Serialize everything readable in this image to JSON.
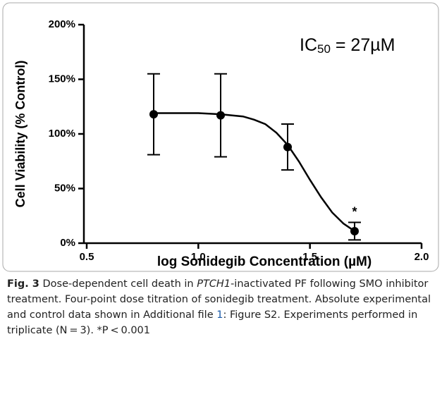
{
  "chart_data": {
    "type": "scatter",
    "xlabel": "log Sonidegib Concentration (µM)",
    "ylabel": "Cell Viability (% Control)",
    "x": [
      0.8,
      1.1,
      1.4,
      1.7
    ],
    "values": [
      118,
      117,
      88,
      11
    ],
    "errors": [
      37,
      38,
      21,
      8
    ],
    "color": "#000000",
    "curve": {
      "x": [
        0.8,
        0.9,
        1.0,
        1.1,
        1.2,
        1.25,
        1.3,
        1.35,
        1.4,
        1.45,
        1.5,
        1.55,
        1.6,
        1.65,
        1.7
      ],
      "values": [
        119,
        119,
        119,
        118,
        116,
        113,
        109,
        101,
        90,
        75,
        58,
        42,
        28,
        18,
        11
      ]
    },
    "point_annotation": "*",
    "annotation": {
      "main": "IC",
      "sub": "50",
      "rest": " = 27µM"
    },
    "xlim": [
      0.5,
      2.0
    ],
    "xticks": [
      0.5,
      {
        "value": 1.0,
        "label": "1.0"
      },
      1.5,
      {
        "value": 2.0,
        "label": "2.0"
      }
    ],
    "ylim": [
      0,
      200
    ],
    "yticks": [
      {
        "value": 0,
        "label": "0%"
      },
      {
        "value": 50,
        "label": "50%"
      },
      {
        "value": 100,
        "label": "100%"
      },
      {
        "value": 150,
        "label": "150%"
      },
      {
        "value": 200,
        "label": "200%"
      }
    ]
  },
  "caption": {
    "label": "Fig. 3",
    "t1": " Dose-dependent cell death in ",
    "gene": "PTCH1",
    "t2": "-inactivated PF following SMO inhibitor treatment. Four-point dose titration of sonidegib treatment. Absolute experimental and control data shown in Additional file ",
    "link": "1",
    "t3": ": Figure S2. Experiments performed in triplicate (N = 3). *P < 0.001"
  }
}
